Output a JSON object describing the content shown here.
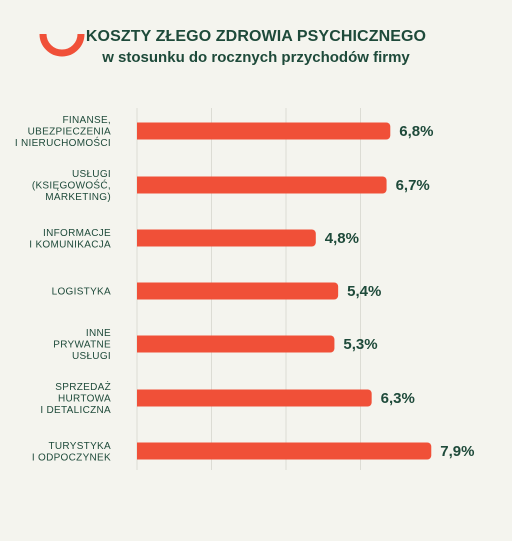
{
  "title_line1": "KOSZTY ZŁEGO ZDROWIA PSYCHICZNEGO",
  "title_line2": "w stosunku do rocznych przychodów firmy",
  "colors": {
    "bar": "#f05038",
    "text": "#1e4a3a",
    "grid": "#dcdcd4",
    "background": "#f4f4ee"
  },
  "logo_icon": "red-arc-logo-icon",
  "chart_data": {
    "type": "bar",
    "orientation": "horizontal",
    "title": "KOSZTY ZŁEGO ZDROWIA PSYCHICZNEGO",
    "subtitle": "w stosunku do rocznych przychodów firmy",
    "categories": [
      [
        "FINANSE,",
        "UBEZPIECZENIA",
        "I NIERUCHOMOŚCI"
      ],
      [
        "USŁUGI",
        "(KSIĘGOWOŚĆ,",
        "MARKETING)"
      ],
      [
        "INFORMACJE",
        "I KOMUNIKACJA"
      ],
      [
        "LOGISTYKA"
      ],
      [
        "INNE",
        "PRYWATNE",
        "USŁUGI"
      ],
      [
        "SPRZEDAŻ",
        "HURTOWA",
        "I DETALICZNA"
      ],
      [
        "TURYSTYKA",
        "I ODPOCZYNEK"
      ]
    ],
    "values": [
      6.8,
      6.7,
      4.8,
      5.4,
      5.3,
      6.3,
      7.9
    ],
    "value_labels": [
      "6,8%",
      "6,7%",
      "4,8%",
      "5,4%",
      "5,3%",
      "6,3%",
      "7,9%"
    ],
    "unit": "%",
    "xlim": [
      0,
      8
    ],
    "grid_values": [
      2,
      4,
      6
    ],
    "grid": true,
    "legend": "none"
  }
}
